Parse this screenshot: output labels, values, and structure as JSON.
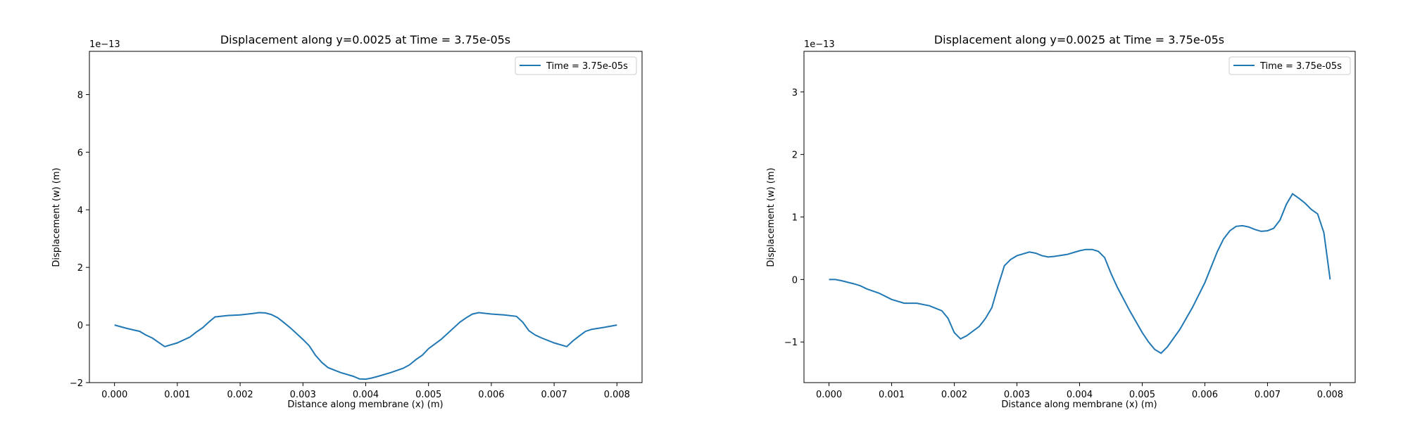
{
  "chart_data": [
    {
      "type": "line",
      "title": "Displacement along y=0.0025 at Time = 3.75e-05s",
      "xlabel": "Distance along membrane (x) (m)",
      "ylabel": "Displacement (w) (m)",
      "y_offset_label": "1e−13",
      "xlim": [
        -0.0004,
        0.0084
      ],
      "ylim": [
        -2.0,
        9.5
      ],
      "xticks": [
        0.0,
        0.001,
        0.002,
        0.003,
        0.004,
        0.005,
        0.006,
        0.007,
        0.008
      ],
      "xtick_labels": [
        "0.000",
        "0.001",
        "0.002",
        "0.003",
        "0.004",
        "0.005",
        "0.006",
        "0.007",
        "0.008"
      ],
      "yticks": [
        -2,
        0,
        2,
        4,
        6,
        8
      ],
      "ytick_labels": [
        "−2",
        "0",
        "2",
        "4",
        "6",
        "8"
      ],
      "legend_position": "top-right",
      "grid": false,
      "series": [
        {
          "name": "Time = 3.75e-05s",
          "color": "#1f77b4",
          "x": [
            0.0,
            0.0002,
            0.0004,
            0.0005,
            0.0006,
            0.0007,
            0.0008,
            0.001,
            0.0012,
            0.0013,
            0.0014,
            0.0015,
            0.0016,
            0.0018,
            0.002,
            0.0022,
            0.0023,
            0.0024,
            0.0025,
            0.0026,
            0.0027,
            0.0028,
            0.003,
            0.0031,
            0.0032,
            0.0033,
            0.0034,
            0.0036,
            0.0038,
            0.0039,
            0.004,
            0.0041,
            0.0042,
            0.0044,
            0.0046,
            0.0047,
            0.0048,
            0.0049,
            0.005,
            0.0052,
            0.0053,
            0.0054,
            0.0055,
            0.0056,
            0.0057,
            0.0058,
            0.006,
            0.0062,
            0.0064,
            0.0065,
            0.0066,
            0.0067,
            0.0068,
            0.007,
            0.0072,
            0.0073,
            0.0074,
            0.0075,
            0.0076,
            0.0078,
            0.008
          ],
          "y": [
            0.0,
            -0.12,
            -0.22,
            -0.35,
            -0.45,
            -0.6,
            -0.75,
            -0.62,
            -0.42,
            -0.25,
            -0.1,
            0.1,
            0.28,
            0.33,
            0.35,
            0.4,
            0.43,
            0.42,
            0.36,
            0.25,
            0.08,
            -0.1,
            -0.5,
            -0.72,
            -1.05,
            -1.3,
            -1.48,
            -1.65,
            -1.78,
            -1.87,
            -1.88,
            -1.84,
            -1.78,
            -1.65,
            -1.5,
            -1.38,
            -1.2,
            -1.05,
            -0.82,
            -0.5,
            -0.3,
            -0.1,
            0.1,
            0.25,
            0.38,
            0.43,
            0.38,
            0.35,
            0.3,
            0.1,
            -0.2,
            -0.35,
            -0.45,
            -0.62,
            -0.75,
            -0.55,
            -0.38,
            -0.22,
            -0.15,
            -0.08,
            0.0
          ]
        }
      ]
    },
    {
      "type": "line",
      "title": "Displacement along y=0.0025 at Time = 3.75e-05s",
      "xlabel": "Distance along membrane (x) (m)",
      "ylabel": "Displacement (w) (m)",
      "y_offset_label": "1e−13",
      "xlim": [
        -0.0004,
        0.0084
      ],
      "ylim": [
        -1.65,
        3.65
      ],
      "xticks": [
        0.0,
        0.001,
        0.002,
        0.003,
        0.004,
        0.005,
        0.006,
        0.007,
        0.008
      ],
      "xtick_labels": [
        "0.000",
        "0.001",
        "0.002",
        "0.003",
        "0.004",
        "0.005",
        "0.006",
        "0.007",
        "0.008"
      ],
      "yticks": [
        -1,
        0,
        1,
        2,
        3
      ],
      "ytick_labels": [
        "−1",
        "0",
        "1",
        "2",
        "3"
      ],
      "legend_position": "top-right",
      "grid": false,
      "series": [
        {
          "name": "Time = 3.75e-05s",
          "color": "#1f77b4",
          "x": [
            0.0,
            0.0001,
            0.0002,
            0.0004,
            0.0005,
            0.0006,
            0.0008,
            0.001,
            0.0012,
            0.0014,
            0.0016,
            0.0018,
            0.0019,
            0.002,
            0.0021,
            0.0022,
            0.0024,
            0.0025,
            0.0026,
            0.0027,
            0.0028,
            0.0029,
            0.003,
            0.0032,
            0.0033,
            0.0034,
            0.0035,
            0.0036,
            0.0038,
            0.004,
            0.0041,
            0.0042,
            0.0043,
            0.0044,
            0.0045,
            0.0046,
            0.0048,
            0.005,
            0.0051,
            0.0052,
            0.0053,
            0.0054,
            0.0056,
            0.0058,
            0.006,
            0.0061,
            0.0062,
            0.0063,
            0.0064,
            0.0065,
            0.0066,
            0.0067,
            0.0068,
            0.0069,
            0.007,
            0.0071,
            0.0072,
            0.0073,
            0.0074,
            0.0075,
            0.0076,
            0.0077,
            0.0078,
            0.0079,
            0.008
          ],
          "y": [
            0.0,
            0.0,
            -0.02,
            -0.07,
            -0.1,
            -0.15,
            -0.22,
            -0.32,
            -0.38,
            -0.38,
            -0.42,
            -0.5,
            -0.62,
            -0.85,
            -0.95,
            -0.9,
            -0.75,
            -0.62,
            -0.45,
            -0.1,
            0.22,
            0.32,
            0.38,
            0.44,
            0.42,
            0.38,
            0.36,
            0.37,
            0.4,
            0.46,
            0.48,
            0.48,
            0.45,
            0.35,
            0.1,
            -0.12,
            -0.5,
            -0.85,
            -1.0,
            -1.12,
            -1.18,
            -1.08,
            -0.8,
            -0.45,
            -0.05,
            0.2,
            0.45,
            0.65,
            0.78,
            0.85,
            0.86,
            0.84,
            0.8,
            0.77,
            0.78,
            0.82,
            0.95,
            1.2,
            1.37,
            1.3,
            1.22,
            1.12,
            1.05,
            0.75,
            0.0
          ]
        }
      ]
    }
  ]
}
